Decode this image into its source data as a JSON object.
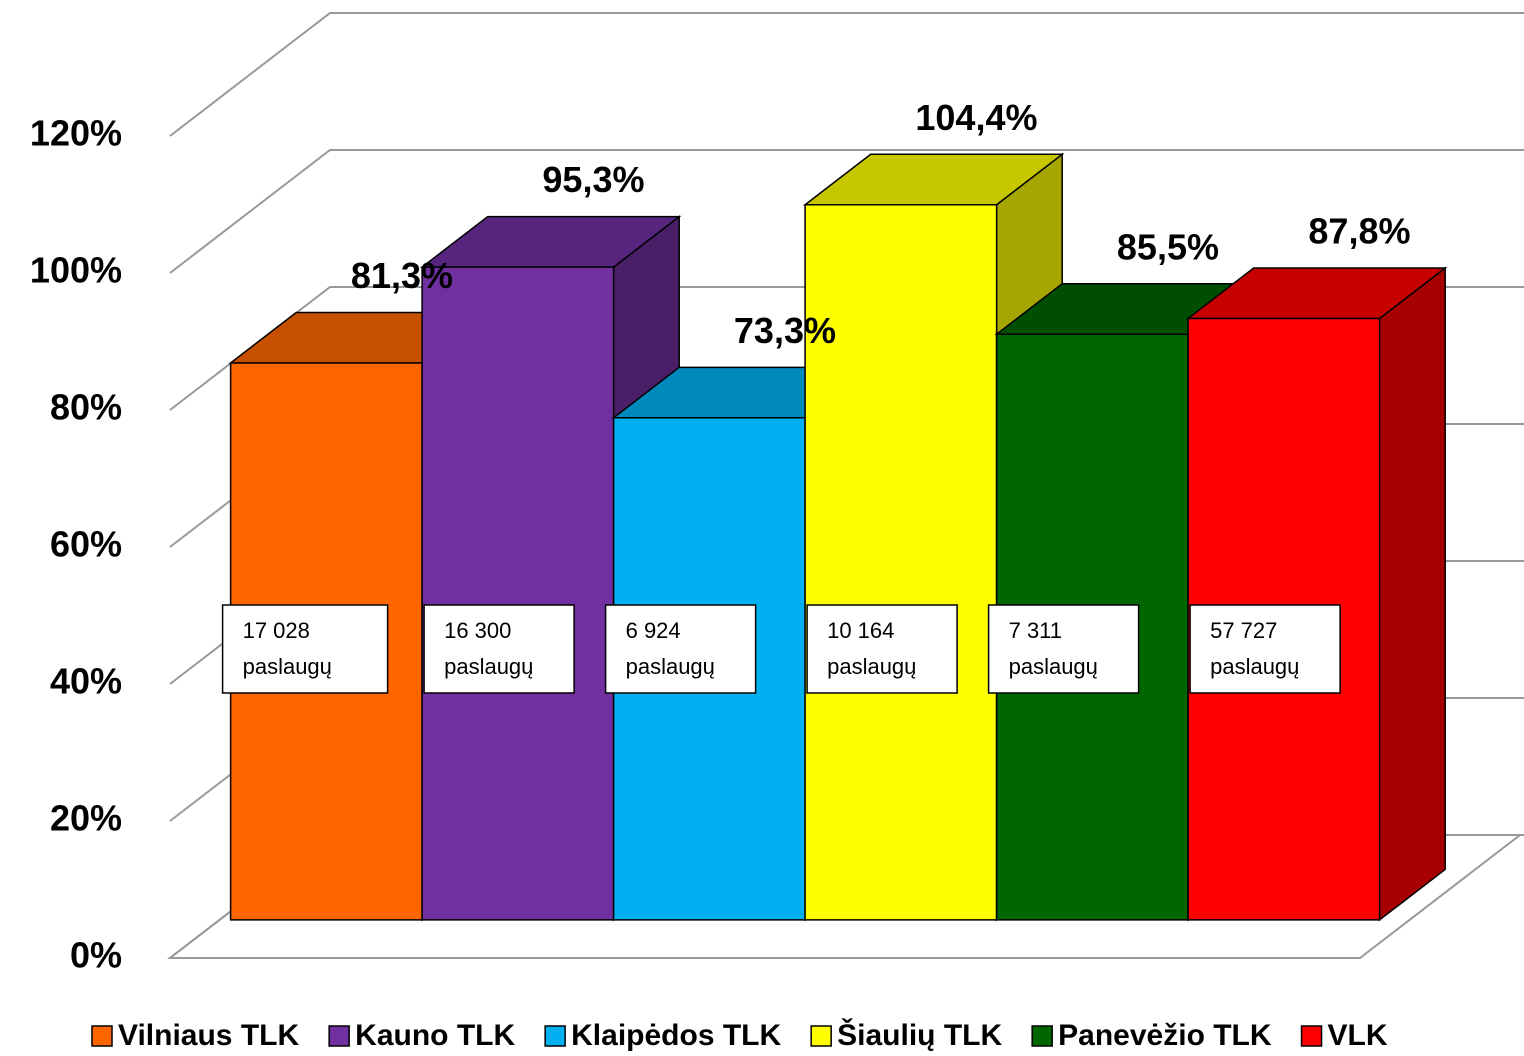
{
  "chart_data": {
    "type": "bar",
    "series": [
      {
        "name": "Vilniaus TLK",
        "color": "#ff6600",
        "values": [
          81.3
        ],
        "value_labels": [
          "81,3%"
        ],
        "annotation": [
          "17 028",
          "paslaugų"
        ]
      },
      {
        "name": "Kauno TLK",
        "color": "#7030a0",
        "values": [
          95.3
        ],
        "value_labels": [
          "95,3%"
        ],
        "annotation": [
          "16 300",
          "paslaugų"
        ]
      },
      {
        "name": "Klaipėdos TLK",
        "color": "#00b0f0",
        "values": [
          73.3
        ],
        "value_labels": [
          "73,3%"
        ],
        "annotation": [
          "6 924",
          "paslaugų"
        ]
      },
      {
        "name": "Šiaulių TLK",
        "color": "#ffff00",
        "values": [
          104.4
        ],
        "value_labels": [
          "104,4%"
        ],
        "annotation": [
          "10 164",
          "paslaugų"
        ]
      },
      {
        "name": "Panevėžio TLK",
        "color": "#006600",
        "values": [
          85.5
        ],
        "value_labels": [
          "85,5%"
        ],
        "annotation": [
          "7 311",
          "paslaugų"
        ]
      },
      {
        "name": "VLK",
        "color": "#ff0000",
        "values": [
          87.8
        ],
        "value_labels": [
          "87,8%"
        ],
        "annotation": [
          "57 727",
          "paslaugų"
        ]
      }
    ],
    "ylim": [
      0,
      120
    ],
    "yticks": [
      {
        "value": 0,
        "label": "0%"
      },
      {
        "value": 20,
        "label": "20%"
      },
      {
        "value": 40,
        "label": "40%"
      },
      {
        "value": 60,
        "label": "60%"
      },
      {
        "value": 80,
        "label": "80%"
      },
      {
        "value": 100,
        "label": "100%"
      },
      {
        "value": 120,
        "label": "120%"
      }
    ],
    "grid": true,
    "legend": "bottom"
  }
}
